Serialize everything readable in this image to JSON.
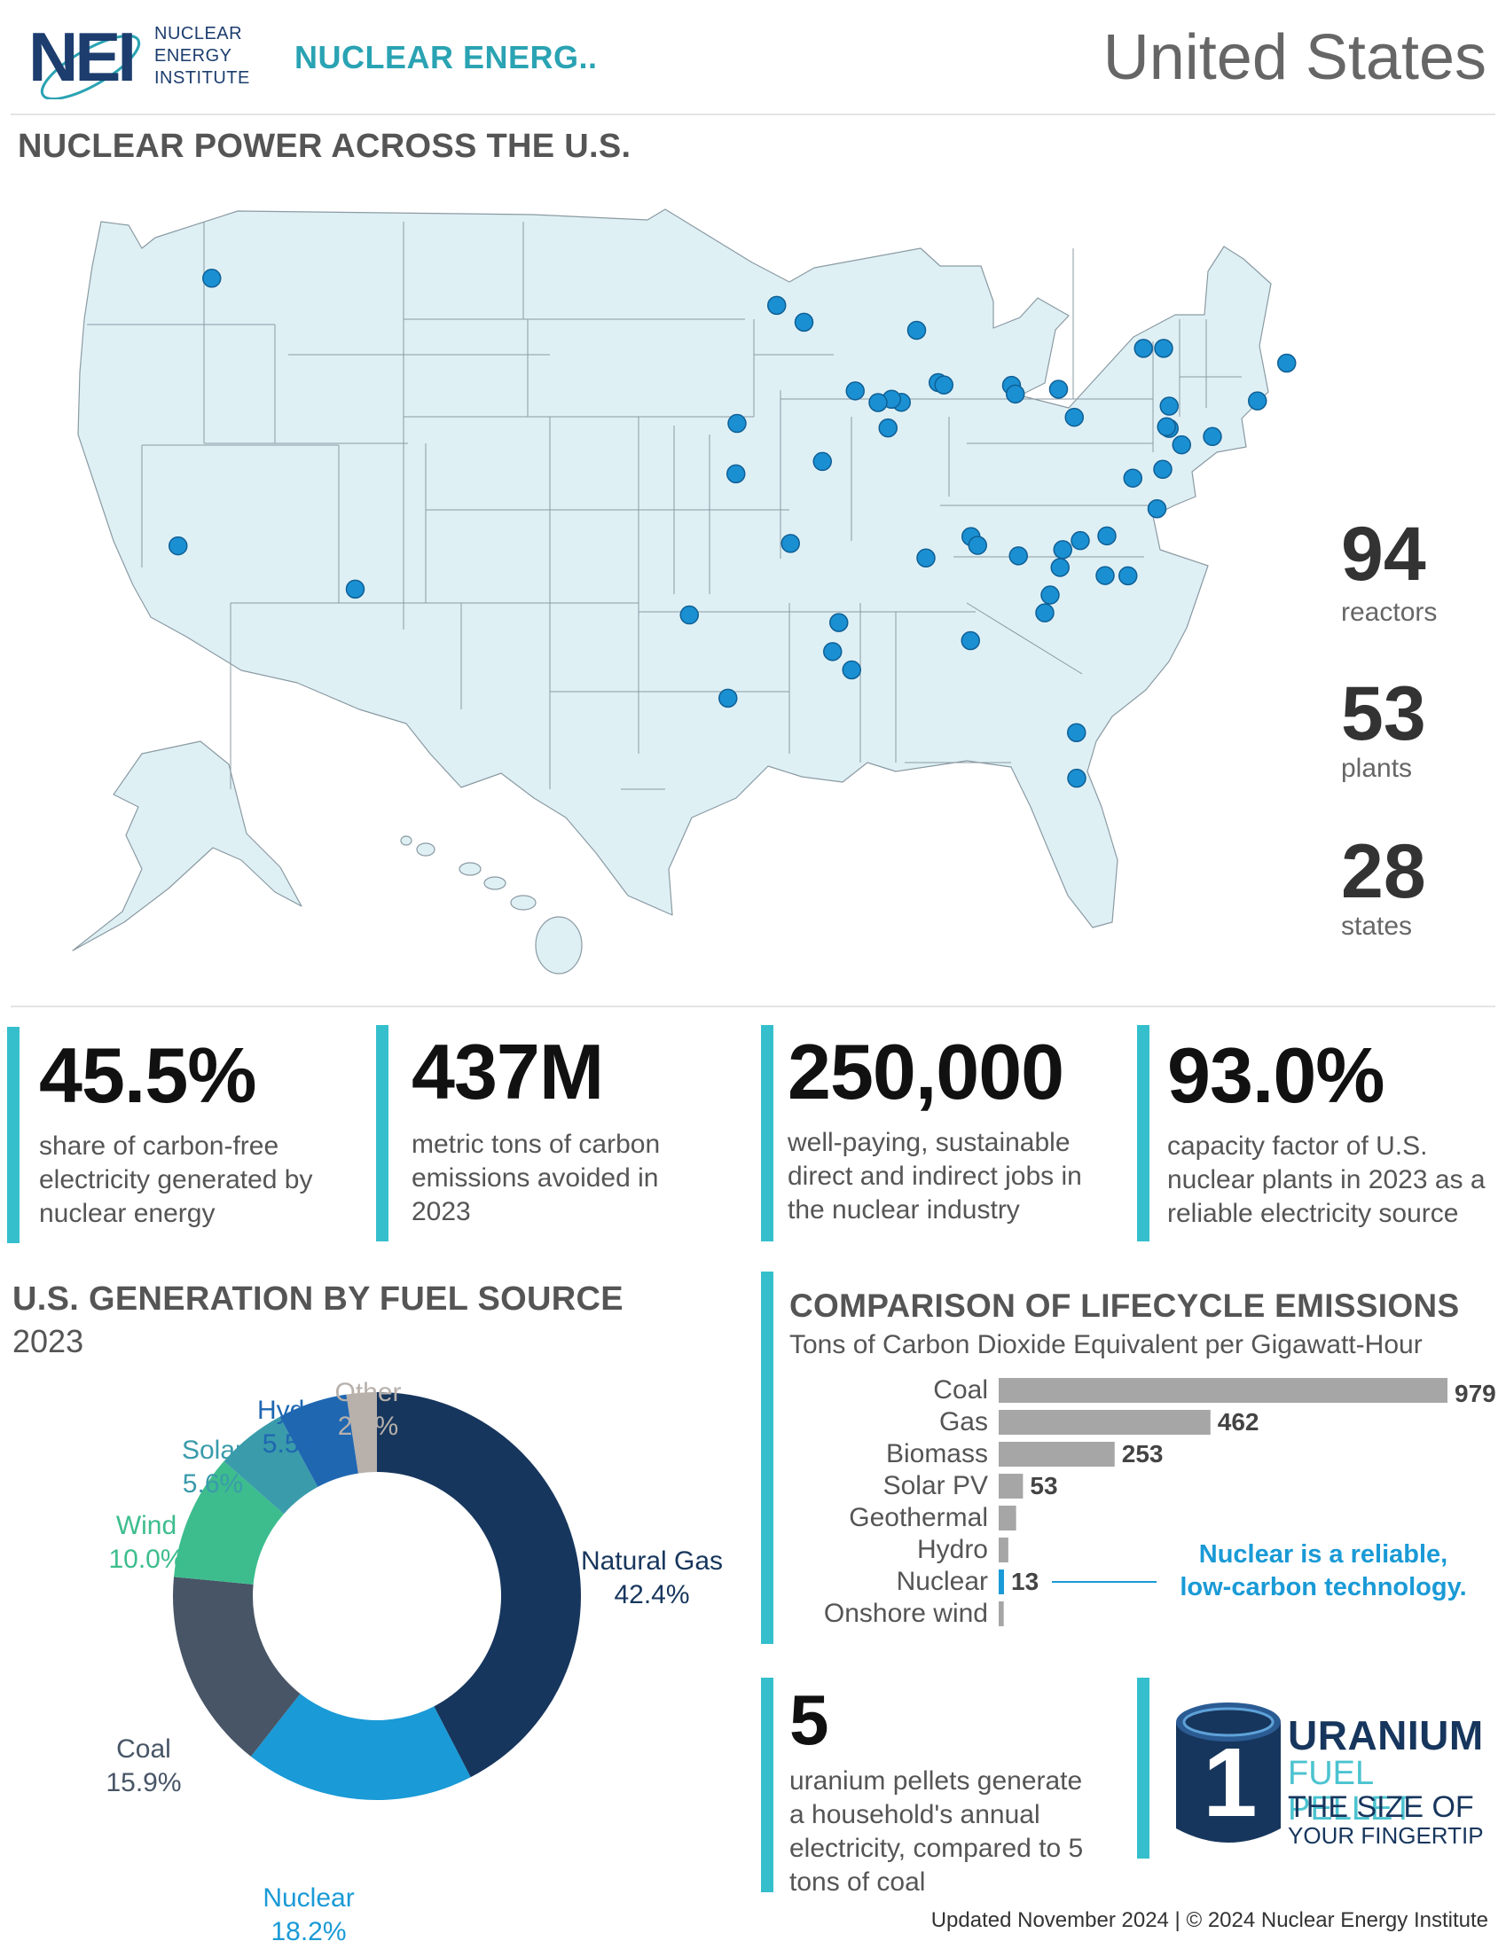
{
  "header": {
    "logo_mark": "NEI",
    "logo_lines": [
      "NUCLEAR",
      "ENERGY",
      "INSTITUTE"
    ],
    "org_short": "NUCLEAR ENERG..",
    "title": "United States"
  },
  "map_section": {
    "title": "NUCLEAR POWER ACROSS THE U.S.",
    "stats": [
      {
        "value": "94",
        "label": "reactors"
      },
      {
        "value": "53",
        "label": "plants"
      },
      {
        "value": "28",
        "label": "states"
      }
    ]
  },
  "cards": [
    {
      "value": "45.5%",
      "lines": [
        "share of carbon-free",
        "electricity generated by",
        "nuclear energy"
      ]
    },
    {
      "value": "437M",
      "lines": [
        "metric tons of carbon",
        "emissions avoided in",
        "2023"
      ]
    },
    {
      "value": "250,000",
      "lines": [
        "well-paying, sustainable",
        "direct and indirect jobs in",
        "the nuclear industry"
      ]
    },
    {
      "value": "93.0%",
      "lines": [
        "capacity factor of U.S.",
        "nuclear plants in 2023 as a",
        "reliable electricity source"
      ]
    }
  ],
  "chart_data": [
    {
      "type": "pie",
      "title": "U.S. GENERATION BY FUEL SOURCE",
      "subtitle": "2023",
      "labels": [
        "Natural Gas",
        "Nuclear",
        "Coal",
        "Wind",
        "Solar",
        "Hydro",
        "Other"
      ],
      "values": [
        42.4,
        18.2,
        15.9,
        10.0,
        5.6,
        5.5,
        2.4
      ],
      "value_labels": [
        "42.4%",
        "18.2%",
        "15.9%",
        "10.0%",
        "5.6%",
        "5.5%",
        "2.4%"
      ],
      "colors": [
        "#17365d",
        "#1a9ad6",
        "#475566",
        "#3dbd8d",
        "#3a9bab",
        "#1f67b1",
        "#b7b0ab"
      ],
      "label_colors": [
        "#17365d",
        "#1a9ad6",
        "#475566",
        "#3dbd8d",
        "#3a9bab",
        "#1f67b1",
        "#b7b0ab"
      ]
    },
    {
      "type": "bar",
      "orientation": "horizontal",
      "title": "COMPARISON OF LIFECYCLE EMISSIONS",
      "subtitle": "Tons of Carbon Dioxide Equivalent per Gigawatt-Hour",
      "categories": [
        "Coal",
        "Gas",
        "Biomass",
        "Solar PV",
        "Geothermal",
        "Hydro",
        "Nuclear",
        "Onshore wind"
      ],
      "values": [
        979,
        462,
        253,
        53,
        38,
        21,
        13,
        11
      ],
      "data_labels": [
        "979",
        "462",
        "253",
        "53",
        "",
        "",
        "13",
        ""
      ],
      "highlight": "Nuclear",
      "highlight_color": "#1a9ad6",
      "bar_color": "#a6a6a6",
      "annotation": [
        "Nuclear is a reliable,",
        "low-carbon technology."
      ]
    }
  ],
  "pellet": {
    "value": "5",
    "lines": [
      "uranium pellets generate",
      "a household's annual",
      "electricity, compared to 5",
      "tons of coal"
    ],
    "graphic_number": "1",
    "graphic_lines": [
      "URANIUM",
      "FUEL PELLET",
      "THE SIZE OF",
      "YOUR FINGERTIP"
    ]
  },
  "footer": "Updated November 2024 | © 2024 Nuclear Energy Institute",
  "map_plants": [
    [
      -119.33,
      46.47
    ],
    [
      -120.85,
      35.21
    ],
    [
      -112.86,
      33.39
    ],
    [
      -97.79,
      32.3
    ],
    [
      -96.05,
      28.8
    ],
    [
      -91.33,
      30.76
    ],
    [
      -90.47,
      29.99
    ],
    [
      -91.05,
      31.98
    ],
    [
      -93.23,
      35.31
    ],
    [
      -95.69,
      38.24
    ],
    [
      -95.64,
      40.36
    ],
    [
      -91.79,
      38.76
    ],
    [
      -92.62,
      44.62
    ],
    [
      -93.85,
      45.33
    ],
    [
      -87.54,
      44.28
    ],
    [
      -88.23,
      41.25
    ],
    [
      -88.67,
      41.38
    ],
    [
      -89.28,
      41.24
    ],
    [
      -88.83,
      40.17
    ],
    [
      -90.31,
      41.73
    ],
    [
      -86.57,
      42.08
    ],
    [
      -86.31,
      41.98
    ],
    [
      -83.26,
      41.96
    ],
    [
      -83.09,
      41.6
    ],
    [
      -80.43,
      40.62
    ],
    [
      -81.14,
      41.8
    ],
    [
      -77.31,
      43.52
    ],
    [
      -76.4,
      43.52
    ],
    [
      -76.15,
      40.15
    ],
    [
      -76.27,
      40.22
    ],
    [
      -76.15,
      41.09
    ],
    [
      -75.59,
      39.46
    ],
    [
      -74.2,
      39.81
    ],
    [
      -76.44,
      38.43
    ],
    [
      -77.79,
      38.06
    ],
    [
      -76.7,
      36.77
    ],
    [
      -72.17,
      41.31
    ],
    [
      -70.85,
      42.9
    ],
    [
      -80.16,
      35.43
    ],
    [
      -80.95,
      35.05
    ],
    [
      -78.96,
      35.63
    ],
    [
      -79.04,
      33.96
    ],
    [
      -78.01,
      33.95
    ],
    [
      -81.07,
      34.3
    ],
    [
      -81.52,
      33.14
    ],
    [
      -81.76,
      32.39
    ],
    [
      -82.95,
      34.79
    ],
    [
      -85.09,
      35.6
    ],
    [
      -84.79,
      35.23
    ],
    [
      -87.12,
      34.7
    ],
    [
      -85.11,
      31.22
    ],
    [
      -80.33,
      27.35
    ],
    [
      -80.32,
      25.43
    ]
  ]
}
